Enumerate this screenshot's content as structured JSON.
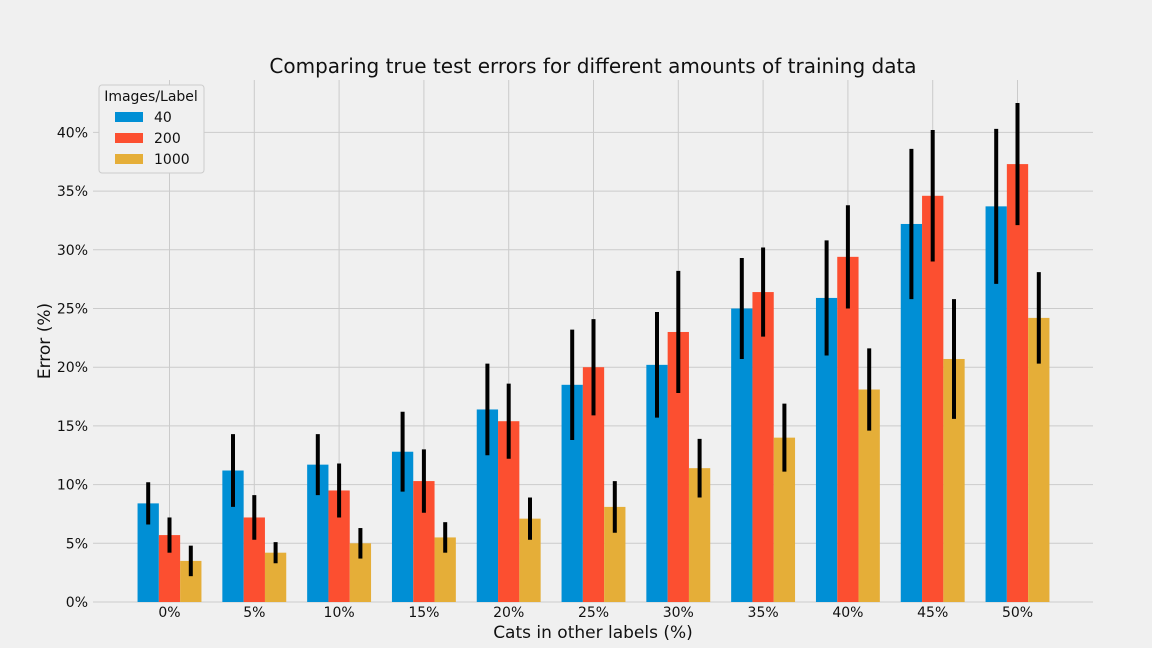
{
  "chart_data": {
    "type": "bar",
    "title": "Comparing true test errors for different amounts of training data",
    "xlabel": "Cats in other labels (%)",
    "ylabel": "Error (%)",
    "ylim": [
      0,
      45
    ],
    "yticks": [
      0,
      5,
      10,
      15,
      20,
      25,
      30,
      35,
      40
    ],
    "ytick_labels": [
      "0%",
      "5%",
      "10%",
      "15%",
      "20%",
      "25%",
      "30%",
      "35%",
      "40%"
    ],
    "categories": [
      "0%",
      "5%",
      "10%",
      "15%",
      "20%",
      "25%",
      "30%",
      "35%",
      "40%",
      "45%",
      "50%"
    ],
    "grid": true,
    "error_bars": true,
    "legend": {
      "title": "Images/Label",
      "position": "top-left"
    },
    "series": [
      {
        "name": "40",
        "color": "#008fd5",
        "values": [
          8.4,
          11.2,
          11.7,
          12.8,
          16.4,
          18.5,
          20.2,
          25.0,
          25.9,
          32.2,
          33.7
        ],
        "errors": [
          1.8,
          3.1,
          2.6,
          3.4,
          3.9,
          4.7,
          4.5,
          4.3,
          4.9,
          6.4,
          6.6
        ]
      },
      {
        "name": "200",
        "color": "#fc4f30",
        "values": [
          5.7,
          7.2,
          9.5,
          10.3,
          15.4,
          20.0,
          23.0,
          26.4,
          29.4,
          34.6,
          37.3
        ],
        "errors": [
          1.5,
          1.9,
          2.3,
          2.7,
          3.2,
          4.1,
          5.2,
          3.8,
          4.4,
          5.6,
          5.2
        ]
      },
      {
        "name": "1000",
        "color": "#e5ae38",
        "values": [
          3.5,
          4.2,
          5.0,
          5.5,
          7.1,
          8.1,
          11.4,
          14.0,
          18.1,
          20.7,
          24.2
        ],
        "errors": [
          1.3,
          0.9,
          1.3,
          1.3,
          1.8,
          2.2,
          2.5,
          2.9,
          3.5,
          5.1,
          3.9
        ]
      }
    ]
  }
}
